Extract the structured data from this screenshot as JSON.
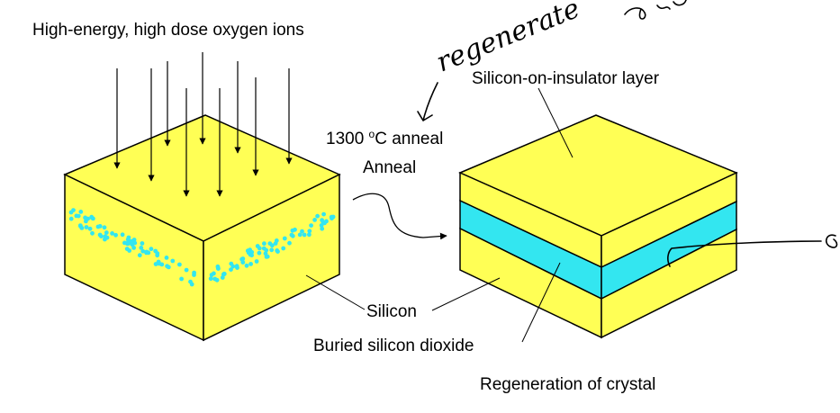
{
  "labels": {
    "ion_beam": "High-energy, high dose oxygen ions",
    "anneal_temp_value": "1300 ",
    "anneal_temp_sup": "o",
    "anneal_temp_unit": "C anneal",
    "anneal": "Anneal",
    "soi_layer": "Silicon-on-insulator layer",
    "silicon": "Silicon",
    "buried_oxide": "Buried silicon dioxide",
    "regeneration": "Regeneration of crystal"
  },
  "handwriting": {
    "annotation": "regenerate"
  },
  "colors": {
    "silicon_yellow": "#FFFF55",
    "oxide_cyan": "#33E6F0",
    "outline": "#000000"
  }
}
